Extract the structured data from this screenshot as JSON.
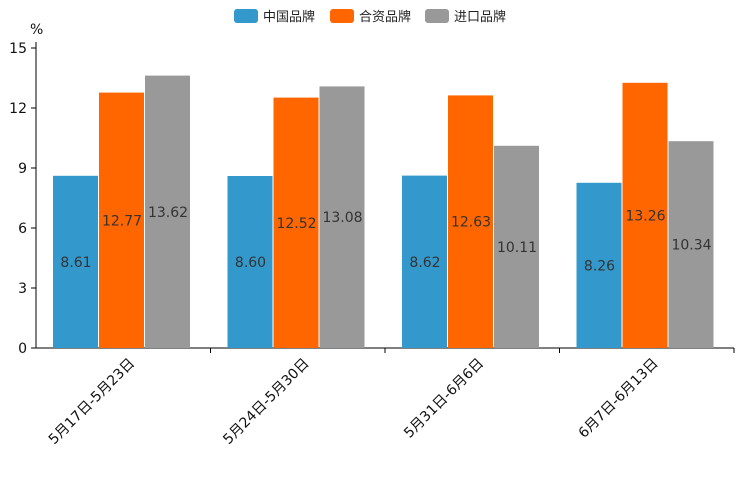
{
  "chart_data": {
    "type": "bar",
    "title": "",
    "ylabel": "%",
    "xlabel": "",
    "ylim": [
      0,
      15
    ],
    "yticks": [
      0,
      3,
      6,
      9,
      12,
      15
    ],
    "grid": false,
    "legend_position": "top-center",
    "categories": [
      "5月17日-5月23日",
      "5月24日-5月30日",
      "5月31日-6月6日",
      "6月7日-6月13日"
    ],
    "series": [
      {
        "name": "中国品牌",
        "color": "#3399cc",
        "values": [
          8.61,
          8.6,
          8.62,
          8.26
        ]
      },
      {
        "name": "合资品牌",
        "color": "#ff6600",
        "values": [
          12.77,
          12.52,
          12.63,
          13.26
        ]
      },
      {
        "name": "进口品牌",
        "color": "#999999",
        "values": [
          13.62,
          13.08,
          10.11,
          10.34
        ]
      }
    ]
  }
}
